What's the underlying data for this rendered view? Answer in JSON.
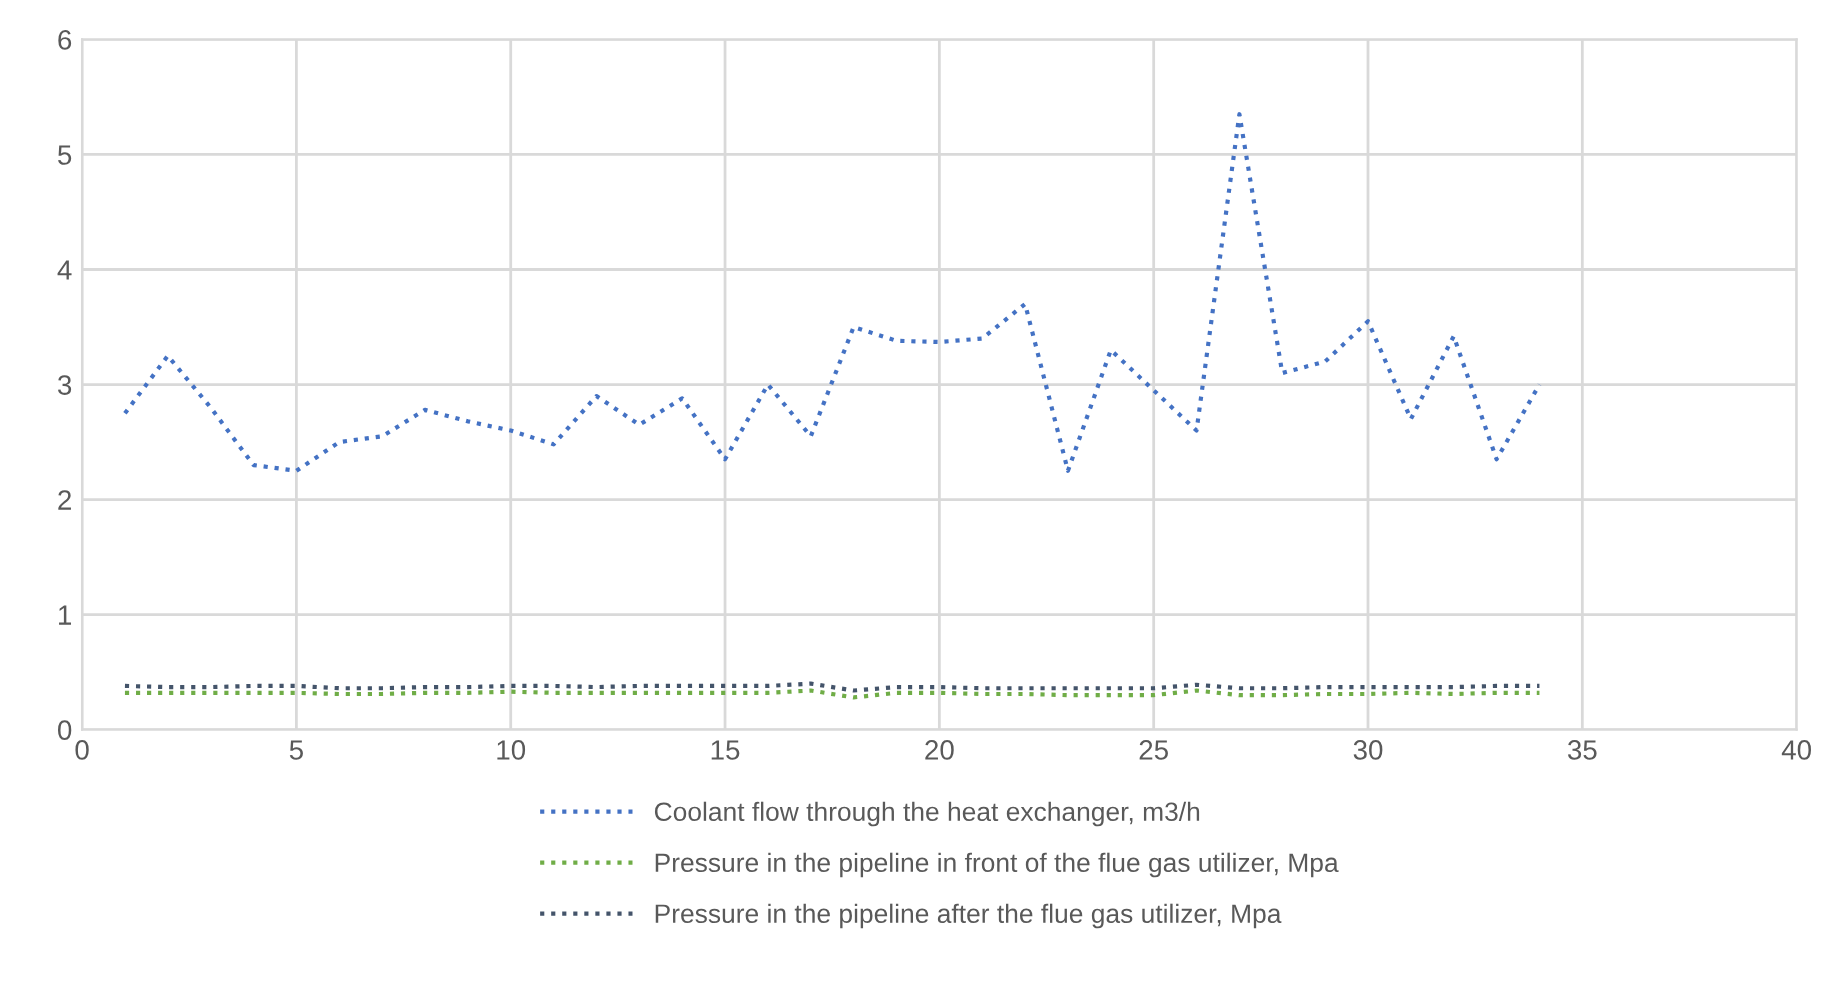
{
  "chart_data": {
    "type": "line",
    "x": [
      1,
      2,
      3,
      4,
      5,
      6,
      7,
      8,
      9,
      10,
      11,
      12,
      13,
      14,
      15,
      16,
      17,
      18,
      19,
      20,
      21,
      22,
      23,
      24,
      25,
      26,
      27,
      28,
      29,
      30,
      31,
      32,
      33,
      34
    ],
    "series": [
      {
        "name": "Coolant flow through the heat exchanger, m3/h",
        "color": "#4472c4",
        "values": [
          2.75,
          3.25,
          2.8,
          2.3,
          2.25,
          2.5,
          2.55,
          2.78,
          2.68,
          2.6,
          2.48,
          2.9,
          2.65,
          2.88,
          2.35,
          3.0,
          2.55,
          3.5,
          3.38,
          3.37,
          3.4,
          3.7,
          2.25,
          3.3,
          2.95,
          2.6,
          5.35,
          3.1,
          3.2,
          3.55,
          2.7,
          3.42,
          2.35,
          3.0
        ]
      },
      {
        "name": "Pressure in the pipeline in front of the flue gas utilizer, Mpa",
        "color": "#70ad47",
        "values": [
          0.32,
          0.32,
          0.32,
          0.32,
          0.32,
          0.31,
          0.31,
          0.32,
          0.32,
          0.33,
          0.32,
          0.32,
          0.32,
          0.32,
          0.32,
          0.32,
          0.34,
          0.28,
          0.32,
          0.32,
          0.31,
          0.31,
          0.3,
          0.3,
          0.3,
          0.34,
          0.3,
          0.3,
          0.31,
          0.31,
          0.32,
          0.31,
          0.32,
          0.32
        ]
      },
      {
        "name": "Pressure in the pipeline after the flue gas utilizer, Mpa",
        "color": "#44546a",
        "values": [
          0.38,
          0.37,
          0.37,
          0.38,
          0.38,
          0.36,
          0.36,
          0.37,
          0.37,
          0.38,
          0.38,
          0.37,
          0.38,
          0.38,
          0.38,
          0.38,
          0.4,
          0.34,
          0.37,
          0.37,
          0.36,
          0.36,
          0.36,
          0.36,
          0.36,
          0.39,
          0.36,
          0.36,
          0.37,
          0.37,
          0.37,
          0.37,
          0.38,
          0.38
        ]
      }
    ],
    "xlim": [
      0,
      40
    ],
    "xticks": [
      0,
      5,
      10,
      15,
      20,
      25,
      30,
      35,
      40
    ],
    "ylim": [
      0,
      6
    ],
    "yticks": [
      0,
      1,
      2,
      3,
      4,
      5,
      6
    ],
    "grid": true,
    "legend": "bottom",
    "line_style": "dotted",
    "marker": "none"
  }
}
